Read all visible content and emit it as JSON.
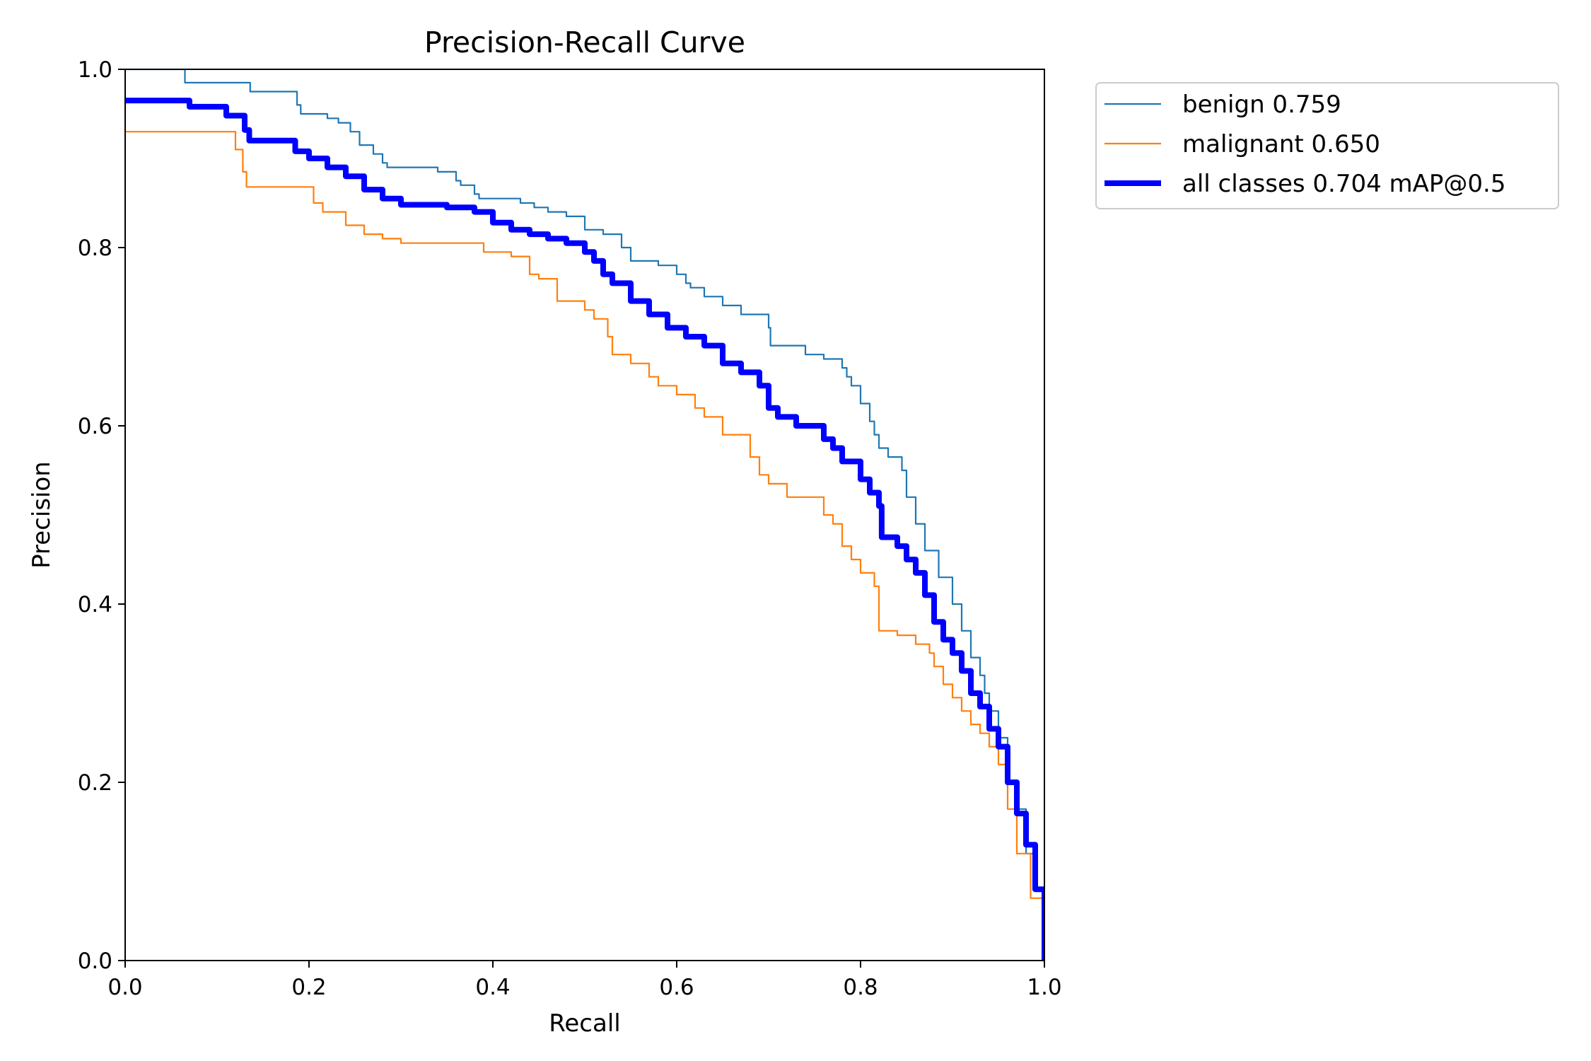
{
  "chart_data": {
    "type": "line",
    "title": "Precision-Recall Curve",
    "xlabel": "Recall",
    "ylabel": "Precision",
    "xlim": [
      0,
      1
    ],
    "ylim": [
      0,
      1
    ],
    "xticks": [
      "0.0",
      "0.2",
      "0.4",
      "0.6",
      "0.8",
      "1.0"
    ],
    "yticks": [
      "0.0",
      "0.2",
      "0.4",
      "0.6",
      "0.8",
      "1.0"
    ],
    "grid": false,
    "legend_position": "outside-top-right",
    "series": [
      {
        "name": "benign 0.759",
        "color": "#1f77b4",
        "width": "thin",
        "x": [
          0.0,
          0.062,
          0.065,
          0.104,
          0.136,
          0.185,
          0.187,
          0.191,
          0.22,
          0.232,
          0.245,
          0.255,
          0.27,
          0.28,
          0.285,
          0.3,
          0.34,
          0.36,
          0.365,
          0.38,
          0.385,
          0.39,
          0.43,
          0.445,
          0.46,
          0.48,
          0.5,
          0.52,
          0.54,
          0.55,
          0.58,
          0.6,
          0.61,
          0.615,
          0.63,
          0.65,
          0.67,
          0.7,
          0.702,
          0.71,
          0.74,
          0.76,
          0.78,
          0.785,
          0.79,
          0.8,
          0.81,
          0.815,
          0.82,
          0.83,
          0.845,
          0.85,
          0.86,
          0.87,
          0.885,
          0.9,
          0.91,
          0.92,
          0.93,
          0.935,
          0.94,
          0.95,
          0.96,
          0.97,
          0.98,
          0.99,
          1.0
        ],
        "y": [
          1.0,
          1.0,
          0.985,
          0.985,
          0.975,
          0.975,
          0.96,
          0.95,
          0.945,
          0.94,
          0.93,
          0.915,
          0.905,
          0.895,
          0.89,
          0.89,
          0.885,
          0.875,
          0.87,
          0.86,
          0.855,
          0.855,
          0.85,
          0.845,
          0.84,
          0.835,
          0.82,
          0.815,
          0.8,
          0.785,
          0.78,
          0.77,
          0.76,
          0.755,
          0.745,
          0.735,
          0.725,
          0.71,
          0.69,
          0.69,
          0.68,
          0.675,
          0.665,
          0.655,
          0.645,
          0.625,
          0.605,
          0.59,
          0.575,
          0.565,
          0.55,
          0.52,
          0.49,
          0.46,
          0.43,
          0.4,
          0.37,
          0.34,
          0.32,
          0.3,
          0.28,
          0.25,
          0.2,
          0.17,
          0.12,
          0.08,
          0.0
        ]
      },
      {
        "name": "malignant 0.650",
        "color": "#ff7f0e",
        "width": "thin",
        "x": [
          0.0,
          0.105,
          0.12,
          0.128,
          0.132,
          0.2,
          0.205,
          0.215,
          0.24,
          0.26,
          0.28,
          0.3,
          0.38,
          0.39,
          0.42,
          0.44,
          0.45,
          0.47,
          0.5,
          0.51,
          0.525,
          0.53,
          0.55,
          0.57,
          0.58,
          0.6,
          0.62,
          0.63,
          0.65,
          0.68,
          0.69,
          0.7,
          0.72,
          0.76,
          0.77,
          0.78,
          0.79,
          0.8,
          0.815,
          0.82,
          0.84,
          0.86,
          0.875,
          0.88,
          0.89,
          0.9,
          0.91,
          0.92,
          0.93,
          0.94,
          0.95,
          0.96,
          0.97,
          0.985,
          1.0
        ],
        "y": [
          0.93,
          0.93,
          0.91,
          0.885,
          0.868,
          0.868,
          0.85,
          0.84,
          0.825,
          0.815,
          0.81,
          0.805,
          0.805,
          0.795,
          0.79,
          0.77,
          0.765,
          0.74,
          0.73,
          0.72,
          0.7,
          0.68,
          0.67,
          0.655,
          0.645,
          0.635,
          0.62,
          0.61,
          0.59,
          0.565,
          0.545,
          0.535,
          0.52,
          0.5,
          0.49,
          0.465,
          0.45,
          0.435,
          0.42,
          0.37,
          0.365,
          0.355,
          0.345,
          0.33,
          0.31,
          0.295,
          0.28,
          0.265,
          0.255,
          0.24,
          0.22,
          0.17,
          0.12,
          0.07,
          0.0
        ]
      },
      {
        "name": "all classes 0.704 mAP@0.5",
        "color": "#0000ff",
        "width": "thick",
        "x": [
          0.0,
          0.065,
          0.07,
          0.1,
          0.11,
          0.13,
          0.135,
          0.175,
          0.185,
          0.2,
          0.22,
          0.24,
          0.26,
          0.28,
          0.3,
          0.32,
          0.35,
          0.38,
          0.4,
          0.42,
          0.44,
          0.46,
          0.48,
          0.5,
          0.51,
          0.52,
          0.53,
          0.55,
          0.57,
          0.59,
          0.61,
          0.63,
          0.65,
          0.67,
          0.69,
          0.7,
          0.71,
          0.73,
          0.76,
          0.77,
          0.78,
          0.8,
          0.81,
          0.82,
          0.823,
          0.84,
          0.85,
          0.86,
          0.87,
          0.88,
          0.89,
          0.9,
          0.91,
          0.92,
          0.93,
          0.94,
          0.95,
          0.96,
          0.97,
          0.98,
          0.99,
          1.0
        ],
        "y": [
          0.965,
          0.965,
          0.958,
          0.958,
          0.948,
          0.932,
          0.92,
          0.92,
          0.908,
          0.9,
          0.89,
          0.88,
          0.865,
          0.855,
          0.848,
          0.848,
          0.845,
          0.84,
          0.828,
          0.82,
          0.815,
          0.81,
          0.805,
          0.795,
          0.785,
          0.77,
          0.76,
          0.74,
          0.725,
          0.71,
          0.7,
          0.69,
          0.67,
          0.66,
          0.645,
          0.62,
          0.61,
          0.6,
          0.585,
          0.575,
          0.56,
          0.54,
          0.525,
          0.51,
          0.475,
          0.465,
          0.45,
          0.435,
          0.41,
          0.38,
          0.36,
          0.345,
          0.325,
          0.3,
          0.285,
          0.26,
          0.24,
          0.2,
          0.165,
          0.13,
          0.08,
          0.0
        ]
      }
    ]
  }
}
